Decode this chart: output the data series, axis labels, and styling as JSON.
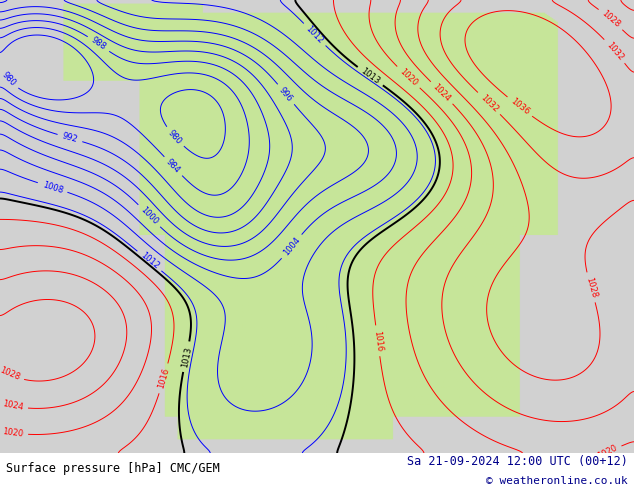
{
  "title_left": "Surface pressure [hPa] CMC/GEM",
  "title_right": "Sa 21-09-2024 12:00 UTC (00+12)",
  "copyright": "© weatheronline.co.uk",
  "bg_color": "#ffffff",
  "ocean_color": [
    0.82,
    0.82,
    0.82
  ],
  "land_color": [
    0.78,
    0.9,
    0.6
  ],
  "text_color_left": "#000000",
  "text_color_right": "#00008b",
  "font_size_title": 8.5,
  "font_size_copy": 8,
  "fig_width": 6.34,
  "fig_height": 4.9,
  "dpi": 100,
  "contour_colors": {
    "low": "#0000ff",
    "mid": "#000000",
    "high": "#ff0000"
  }
}
